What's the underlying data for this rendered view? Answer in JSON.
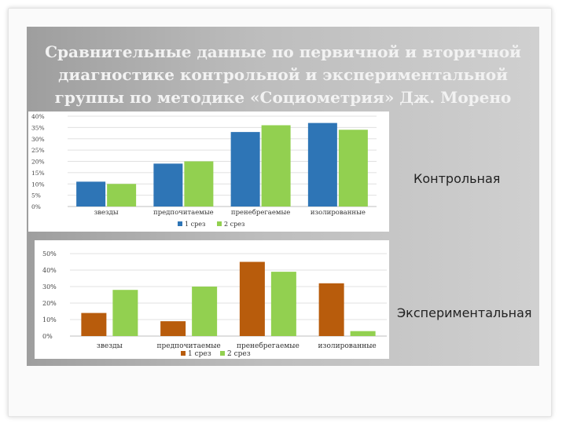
{
  "slide": {
    "title_lines": [
      "Сравнительные данные по первичной и вторичной",
      "диагностике контрольной и экспериментальной",
      "группы по методике «Социометрия» Дж. Морено"
    ],
    "label_control": "Контрольная",
    "label_experimental": "Экспериментальная"
  },
  "chart_data": [
    {
      "type": "bar",
      "group": "Контрольная",
      "categories": [
        "звезды",
        "предпочитаемые",
        "пренебрегаемые",
        "изолированные"
      ],
      "series": [
        {
          "name": "1 срез",
          "values": [
            11,
            19,
            33,
            37
          ],
          "color": "#2e75b6"
        },
        {
          "name": "2 срез",
          "values": [
            10,
            20,
            36,
            34
          ],
          "color": "#92d050"
        }
      ],
      "yticks": [
        "0%",
        "5%",
        "10%",
        "15%",
        "20%",
        "25%",
        "30%",
        "35%",
        "40%"
      ],
      "ylim": [
        0,
        40
      ],
      "grid": true,
      "legend": "bottom"
    },
    {
      "type": "bar",
      "group": "Экспериментальная",
      "categories": [
        "звезды",
        "предпочитаемые",
        "пренебрегаемые",
        "изолированные"
      ],
      "series": [
        {
          "name": "1 срез",
          "values": [
            14,
            9,
            45,
            32
          ],
          "color": "#b85c0c"
        },
        {
          "name": "2 срез",
          "values": [
            28,
            30,
            39,
            3
          ],
          "color": "#92d050"
        }
      ],
      "yticks": [
        "0%",
        "10%",
        "20%",
        "30%",
        "40%",
        "50%"
      ],
      "ylim": [
        0,
        50
      ],
      "grid": true,
      "legend": "bottom"
    }
  ]
}
